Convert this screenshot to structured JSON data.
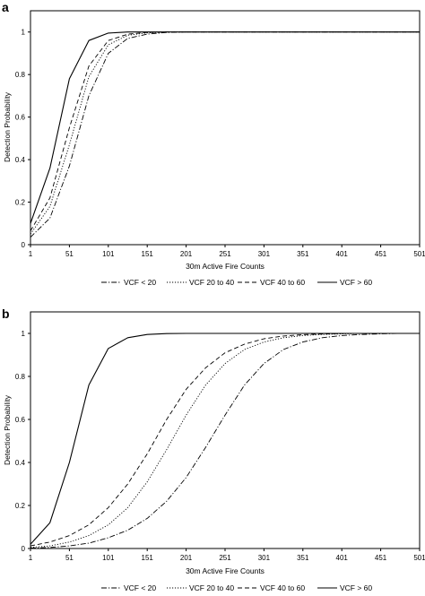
{
  "chart_data": [
    {
      "panel": "a",
      "type": "line",
      "xlabel": "30m Active Fire Counts",
      "ylabel": "Detection Probability",
      "xlim": [
        1,
        501
      ],
      "ylim": [
        0,
        1.1
      ],
      "x_ticks": [
        "1",
        "51",
        "101",
        "151",
        "201",
        "251",
        "301",
        "351",
        "401",
        "451",
        "501"
      ],
      "y_ticks": [
        "0",
        "0.2",
        "0.4",
        "0.6",
        "0.8",
        "1"
      ],
      "grid": false,
      "legend_position": "bottom",
      "series": [
        {
          "name": "VCF < 20",
          "style": "dashdot",
          "x": [
            1,
            26,
            51,
            76,
            101,
            126,
            151,
            176,
            201,
            251,
            301,
            351,
            401,
            451,
            501
          ],
          "y": [
            0.035,
            0.125,
            0.37,
            0.7,
            0.9,
            0.97,
            0.99,
            0.998,
            1,
            1,
            1,
            1,
            1,
            1,
            1
          ]
        },
        {
          "name": "VCF 20 to 40",
          "style": "dotted",
          "x": [
            1,
            26,
            51,
            76,
            101,
            126,
            151,
            176,
            201,
            251,
            301,
            351,
            401,
            451,
            501
          ],
          "y": [
            0.05,
            0.18,
            0.47,
            0.79,
            0.94,
            0.985,
            0.996,
            1,
            1,
            1,
            1,
            1,
            1,
            1,
            1
          ]
        },
        {
          "name": "VCF 40 to 60",
          "style": "dashed",
          "x": [
            1,
            26,
            51,
            76,
            101,
            126,
            151,
            176,
            201,
            251,
            301,
            351,
            401,
            451,
            501
          ],
          "y": [
            0.065,
            0.22,
            0.55,
            0.84,
            0.96,
            0.99,
            0.998,
            1,
            1,
            1,
            1,
            1,
            1,
            1,
            1
          ]
        },
        {
          "name": "VCF > 60",
          "style": "solid",
          "x": [
            1,
            26,
            51,
            76,
            101,
            126,
            151,
            176,
            201,
            251,
            301,
            351,
            401,
            451,
            501
          ],
          "y": [
            0.1,
            0.36,
            0.78,
            0.96,
            0.995,
            1,
            1,
            1,
            1,
            1,
            1,
            1,
            1,
            1,
            1
          ]
        }
      ]
    },
    {
      "panel": "b",
      "type": "line",
      "xlabel": "30m Active Fire Counts",
      "ylabel": "Detection Probability",
      "xlim": [
        1,
        501
      ],
      "ylim": [
        0,
        1.1
      ],
      "x_ticks": [
        "1",
        "51",
        "101",
        "151",
        "201",
        "251",
        "301",
        "351",
        "401",
        "451",
        "501"
      ],
      "y_ticks": [
        "0",
        "0.2",
        "0.4",
        "0.6",
        "0.8",
        "1"
      ],
      "grid": false,
      "legend_position": "bottom",
      "series": [
        {
          "name": "VCF < 20",
          "style": "dashdot",
          "x": [
            1,
            26,
            51,
            76,
            101,
            126,
            151,
            176,
            201,
            226,
            251,
            276,
            301,
            326,
            351,
            376,
            401,
            426,
            451,
            476,
            501
          ],
          "y": [
            0.002,
            0.005,
            0.012,
            0.025,
            0.05,
            0.085,
            0.14,
            0.22,
            0.33,
            0.47,
            0.62,
            0.76,
            0.86,
            0.925,
            0.96,
            0.98,
            0.99,
            0.995,
            0.998,
            1,
            1
          ]
        },
        {
          "name": "VCF 20 to 40",
          "style": "dotted",
          "x": [
            1,
            26,
            51,
            76,
            101,
            126,
            151,
            176,
            201,
            226,
            251,
            276,
            301,
            326,
            351,
            376,
            401,
            426,
            451,
            476,
            501
          ],
          "y": [
            0.005,
            0.012,
            0.03,
            0.06,
            0.11,
            0.19,
            0.31,
            0.46,
            0.62,
            0.76,
            0.86,
            0.925,
            0.96,
            0.98,
            0.99,
            0.995,
            0.998,
            1,
            1,
            1,
            1
          ]
        },
        {
          "name": "VCF 40 to 60",
          "style": "dashed",
          "x": [
            1,
            26,
            51,
            76,
            101,
            126,
            151,
            176,
            201,
            226,
            251,
            276,
            301,
            326,
            351,
            376,
            401,
            426,
            451,
            476,
            501
          ],
          "y": [
            0.012,
            0.03,
            0.06,
            0.11,
            0.19,
            0.3,
            0.44,
            0.6,
            0.74,
            0.84,
            0.91,
            0.95,
            0.975,
            0.988,
            0.994,
            0.997,
            0.999,
            1,
            1,
            1,
            1
          ]
        },
        {
          "name": "VCF > 60",
          "style": "solid",
          "x": [
            1,
            26,
            51,
            76,
            101,
            126,
            151,
            176,
            201,
            226,
            251,
            276,
            301,
            326,
            351,
            376,
            401,
            426,
            451,
            476,
            501
          ],
          "y": [
            0.02,
            0.12,
            0.4,
            0.76,
            0.93,
            0.98,
            0.995,
            0.999,
            1,
            1,
            1,
            1,
            1,
            1,
            1,
            1,
            1,
            1,
            1,
            1,
            1
          ]
        }
      ]
    }
  ]
}
